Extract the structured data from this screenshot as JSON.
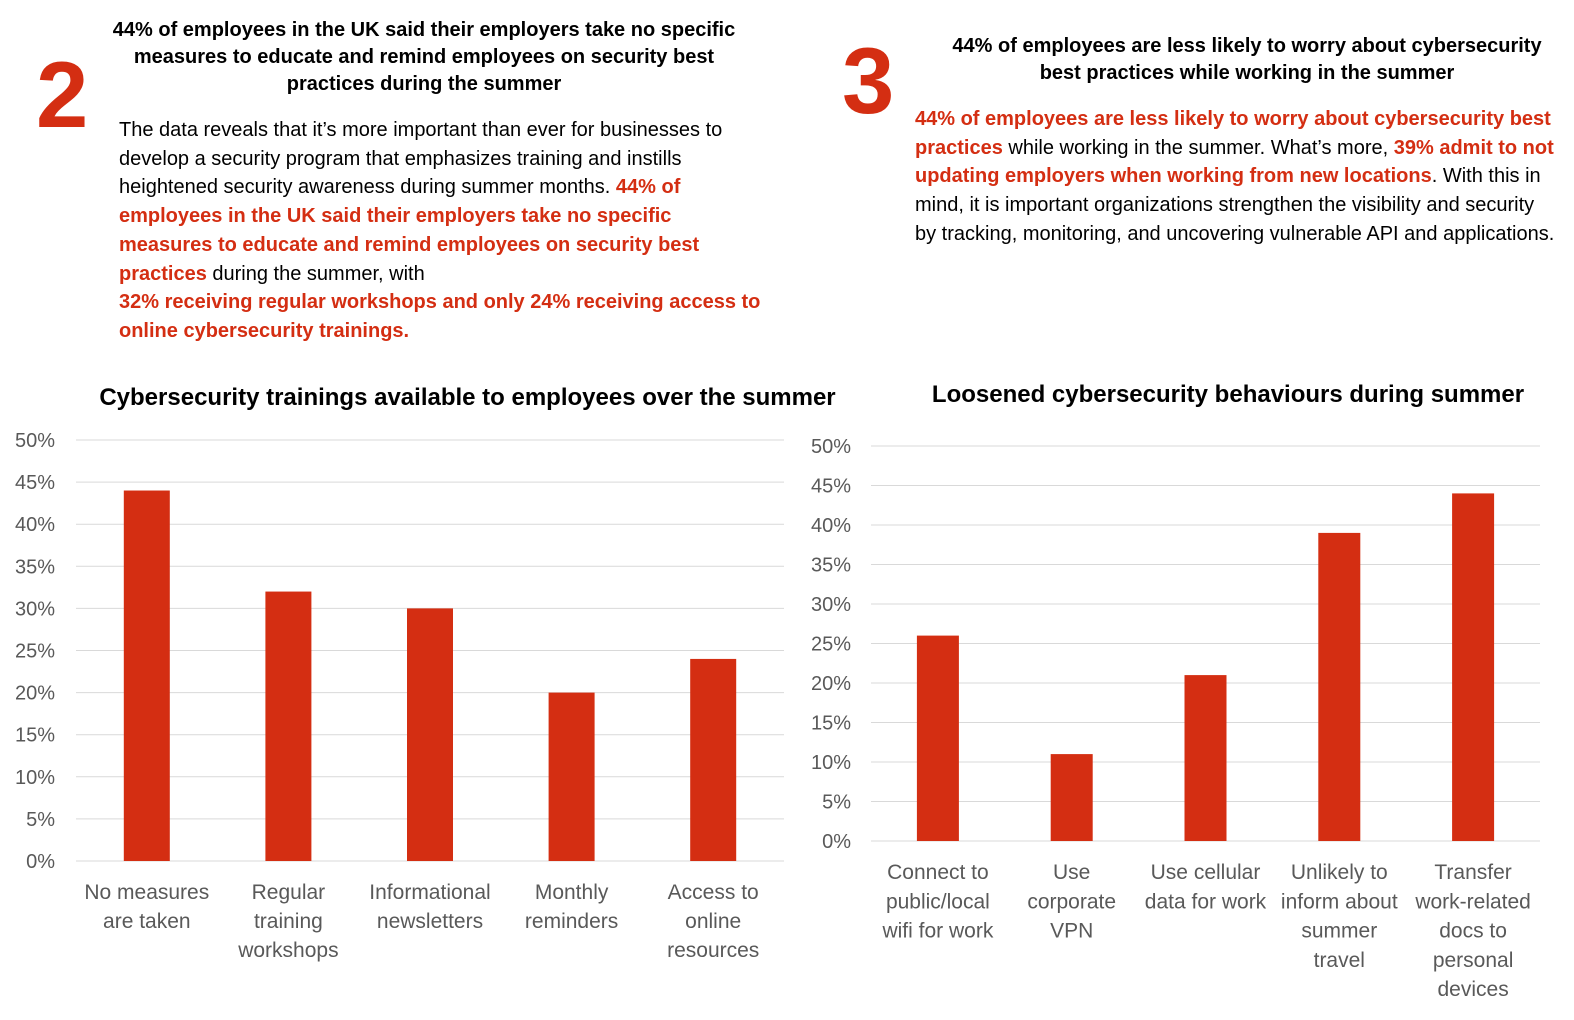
{
  "section2": {
    "number": "2",
    "headline": "44% of employees in the UK said their employers take no specific measures to educate and remind employees on security best practices during the summer",
    "body": {
      "intro": "The data reveals that it’s more important than ever for businesses to develop a security program that emphasizes training and instills heightened security awareness during summer months. ",
      "hl1": "44% of employees in the UK said their employers take no specific measures to educate and remind employees on security best practices",
      "mid": " during the summer, with ",
      "hl2": "32% receiving regular workshops and only 24% receiving access to online cybersecurity trainings."
    }
  },
  "section3": {
    "number": "3",
    "headline": "44% of employees are less likely to worry about cybersecurity best practices while working in the summer",
    "body": {
      "hl1": "44% of employees are less likely to worry about cybersecurity best practices",
      "mid": " while working in the summer. What’s more, ",
      "hl2": "39% admit to not updating employers when working from new locations",
      "end": ". With this in mind, it is important organizations strengthen the visibility and security by tracking, monitoring, and uncovering vulnerable API and applications."
    }
  },
  "colors": {
    "accent": "#d42e12",
    "grid": "#d9d9d9",
    "axis_text": "#595959"
  },
  "chart_data": [
    {
      "type": "bar",
      "title": "Cybersecurity trainings available to employees over the summer",
      "categories": [
        "No measures are taken",
        "Regular training workshops",
        "Informational newsletters",
        "Monthly reminders",
        "Access to online resources"
      ],
      "category_lines": [
        [
          "No measures",
          "are taken"
        ],
        [
          "Regular",
          "training",
          "workshops"
        ],
        [
          "Informational",
          "newsletters"
        ],
        [
          "Monthly",
          "reminders"
        ],
        [
          "Access to",
          "online",
          "resources"
        ]
      ],
      "values": [
        44,
        32,
        30,
        20,
        24
      ],
      "yticks": [
        "0%",
        "5%",
        "10%",
        "15%",
        "20%",
        "25%",
        "30%",
        "35%",
        "40%",
        "45%",
        "50%"
      ],
      "ylim": [
        0,
        50
      ],
      "grid": true
    },
    {
      "type": "bar",
      "title": "Loosened cybersecurity behaviours during summer",
      "categories": [
        "Connect to public/local wifi for work",
        "Use corporate VPN",
        "Use cellular data for work",
        "Unlikely to inform about summer travel",
        "Transfer work-related docs to personal devices"
      ],
      "category_lines": [
        [
          "Connect to",
          "public/local",
          "wifi for work"
        ],
        [
          "Use",
          "corporate",
          "VPN"
        ],
        [
          "Use cellular",
          "data for work"
        ],
        [
          "Unlikely to",
          "inform about",
          "summer",
          "travel"
        ],
        [
          "Transfer",
          "work-related",
          "docs to",
          "personal",
          "devices"
        ]
      ],
      "values": [
        26,
        11,
        21,
        39,
        44
      ],
      "yticks": [
        "0%",
        "5%",
        "10%",
        "15%",
        "20%",
        "25%",
        "30%",
        "35%",
        "40%",
        "45%",
        "50%"
      ],
      "ylim": [
        0,
        50
      ],
      "grid": true
    }
  ]
}
